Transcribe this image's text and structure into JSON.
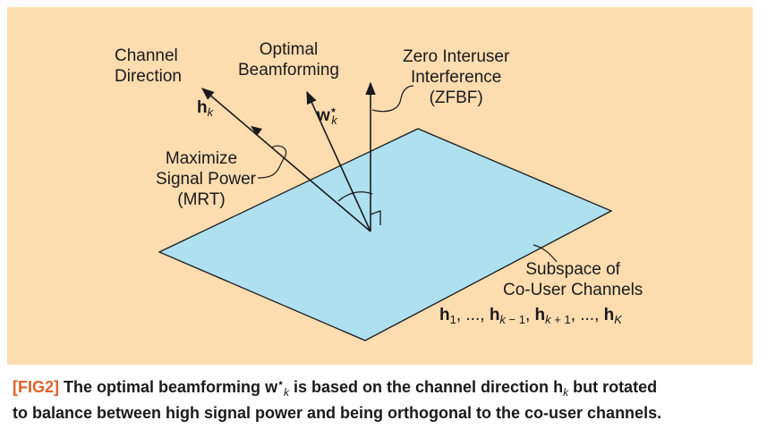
{
  "figure": {
    "labels": {
      "channel_direction": [
        "Channel",
        "Direction"
      ],
      "optimal_beamforming": [
        "Optimal",
        "Beamforming"
      ],
      "zero_interuser": [
        "Zero Interuser",
        "Interference",
        "(ZFBF)"
      ],
      "maximize_signal": [
        "Maximize",
        "Signal Power",
        "(MRT)"
      ],
      "subspace": [
        "Subspace of",
        "Co-User Channels"
      ]
    },
    "vectors": {
      "h_k": {
        "symbol": "h",
        "sub": "k"
      },
      "w_k": {
        "symbol": "w",
        "sub": "k",
        "sup": "⋆"
      }
    },
    "subspace_set": "h1, ..., hk − 1, hk + 1, ..., hK"
  },
  "caption": {
    "tag": "[FIG2]",
    "text_1": "The optimal beamforming",
    "symbol_w": "w",
    "w_sub": "k",
    "w_sup": "⋆",
    "text_2": "is based on the channel direction",
    "symbol_h": "h",
    "h_sub": "k",
    "text_3": "but rotated",
    "line_2": "to balance between high signal power and being orthogonal to the co-user channels."
  },
  "colors": {
    "panel": "#fddcb0",
    "plane": "#aee0f0",
    "tag": "#e0602a",
    "ink": "#1a1a1a"
  }
}
